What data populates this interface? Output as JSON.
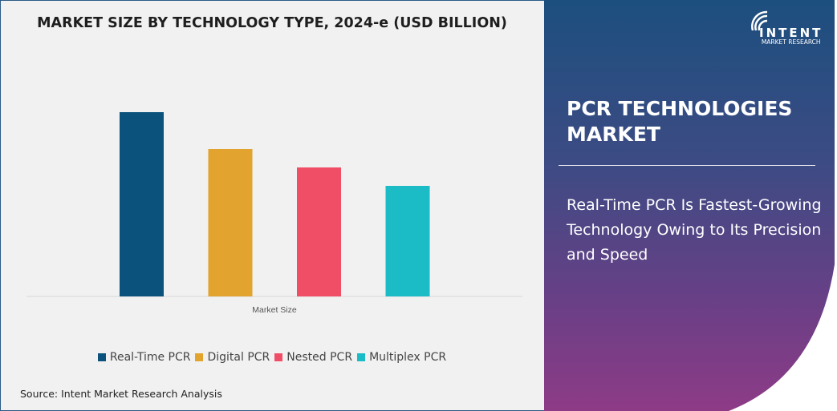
{
  "chart_data": {
    "type": "bar",
    "title": "MARKET SIZE BY TECHNOLOGY TYPE, 2024-e (USD BILLION)",
    "categories": [
      "Market Size"
    ],
    "xlabel": "Market Size",
    "series": [
      {
        "name": "Real-Time PCR",
        "values": [
          1.0
        ],
        "color": "#0b527c"
      },
      {
        "name": "Digital PCR",
        "values": [
          0.8
        ],
        "color": "#e2a42f"
      },
      {
        "name": "Nested PCR",
        "values": [
          0.7
        ],
        "color": "#f04e67"
      },
      {
        "name": "Multiplex PCR",
        "values": [
          0.6
        ],
        "color": "#1cbcc6"
      }
    ],
    "grid": false,
    "legend": "bottom",
    "y_axis_shown": false
  },
  "source": "Source: Intent Market Research Analysis",
  "panel": {
    "title": "PCR TECHNOLOGIES MARKET",
    "subtitle": "Real-Time PCR Is Fastest-Growing Technology Owing to Its Precision and Speed"
  },
  "logo": {
    "name": "INTENT",
    "tagline": "MARKET RESEARCH"
  }
}
